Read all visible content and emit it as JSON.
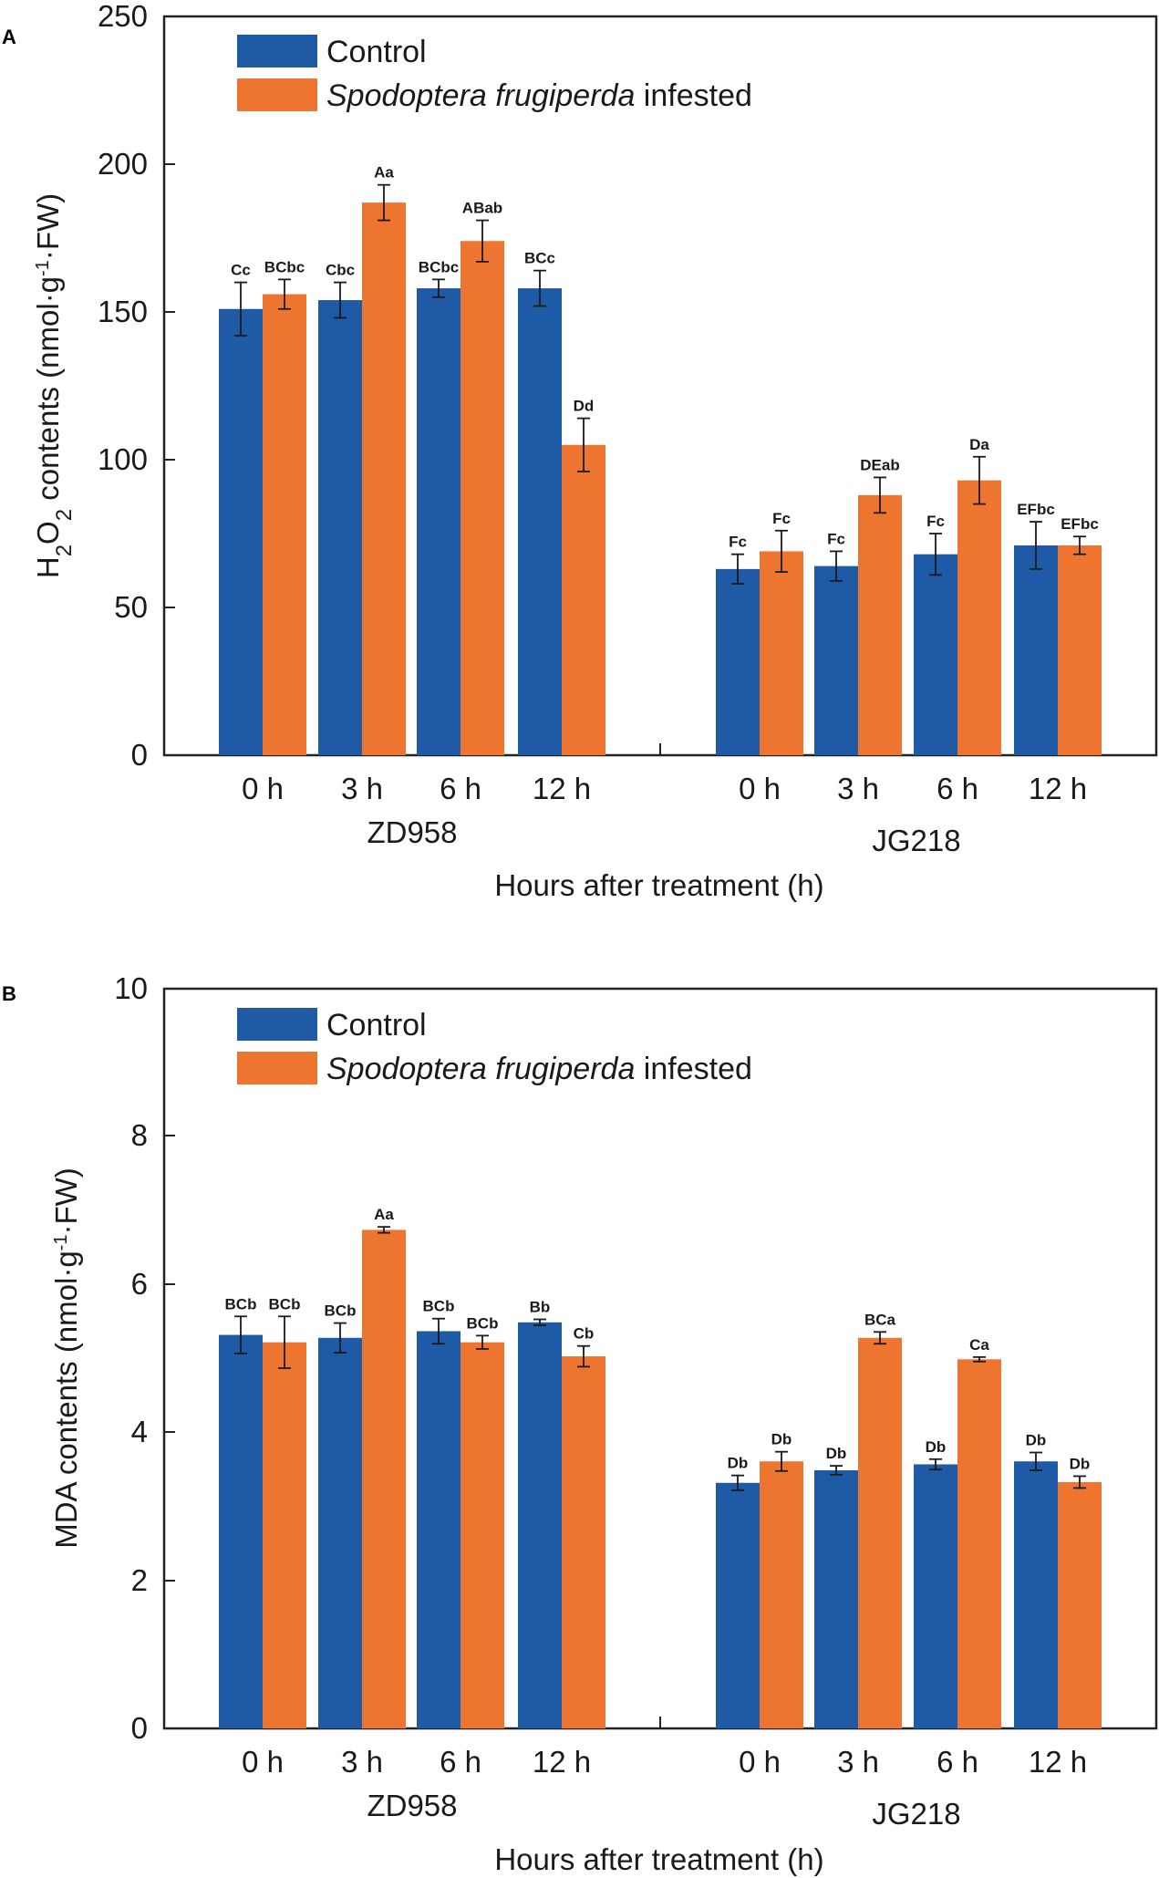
{
  "chart_data": [
    {
      "panel": "A",
      "type": "bar",
      "ylabel": "H2O2 contents (nmol·g-1·FW)",
      "ylabel_parts": {
        "a": "H",
        "b": "2",
        "c": "O",
        "d": "2",
        "e": " contents (nmol·g",
        "f": "-1",
        "g": "·FW)"
      },
      "xlabel": "Hours after treatment (h)",
      "ylim": [
        0,
        250
      ],
      "yticks": [
        "0",
        "50",
        "100",
        "150",
        "200",
        "250"
      ],
      "groups": [
        "ZD958",
        "JG218"
      ],
      "categories": [
        "0 h",
        "3 h",
        "6 h",
        "12 h",
        "0 h",
        "3 h",
        "6 h",
        "12 h"
      ],
      "legend": {
        "control": "Control",
        "infested_italic": "Spodoptera frugiperda",
        "infested_rest": " infested"
      },
      "series": [
        {
          "name": "Control",
          "color": "#1f5aa6",
          "values": [
            151,
            154,
            158,
            158,
            63,
            64,
            68,
            71
          ],
          "errors": [
            9,
            6,
            3,
            6,
            5,
            5,
            7,
            8
          ],
          "labels": [
            "Cc",
            "Cbc",
            "BCbc",
            "BCc",
            "Fc",
            "Fc",
            "Fc",
            "EFbc"
          ]
        },
        {
          "name": "Spodoptera frugiperda infested",
          "color": "#ee7530",
          "values": [
            156,
            187,
            174,
            105,
            69,
            88,
            93,
            71
          ],
          "errors": [
            5,
            6,
            7,
            9,
            7,
            6,
            8,
            3
          ],
          "labels": [
            "BCbc",
            "Aa",
            "ABab",
            "Dd",
            "Fc",
            "DEab",
            "Da",
            "EFbc"
          ]
        }
      ]
    },
    {
      "panel": "B",
      "type": "bar",
      "ylabel": "MDA contents (nmol·g-1·FW)",
      "ylabel_parts": {
        "a": "MDA contents (nmol·g",
        "f": "-1",
        "g": "·FW)"
      },
      "xlabel": "Hours after treatment (h)",
      "ylim": [
        0,
        10
      ],
      "yticks": [
        "0",
        "2",
        "4",
        "6",
        "8",
        "10"
      ],
      "groups": [
        "ZD958",
        "JG218"
      ],
      "categories": [
        "0 h",
        "3 h",
        "6 h",
        "12 h",
        "0 h",
        "3 h",
        "6 h",
        "12 h"
      ],
      "legend": {
        "control": "Control",
        "infested_italic": "Spodoptera frugiperda",
        "infested_rest": " infested"
      },
      "series": [
        {
          "name": "Control",
          "color": "#1f5aa6",
          "values": [
            5.32,
            5.28,
            5.37,
            5.49,
            3.32,
            3.49,
            3.57,
            3.61
          ],
          "errors": [
            0.25,
            0.2,
            0.17,
            0.04,
            0.1,
            0.06,
            0.07,
            0.12
          ],
          "labels": [
            "BCb",
            "BCb",
            "BCb",
            "Bb",
            "Db",
            "Db",
            "Db",
            "Db"
          ]
        },
        {
          "name": "Spodoptera frugiperda infested",
          "color": "#ee7530",
          "values": [
            5.22,
            6.74,
            5.22,
            5.03,
            3.61,
            5.28,
            4.99,
            3.33
          ],
          "errors": [
            0.35,
            0.04,
            0.09,
            0.14,
            0.13,
            0.08,
            0.03,
            0.08
          ],
          "labels": [
            "BCb",
            "Aa",
            "BCb",
            "Cb",
            "Db",
            "BCa",
            "Ca",
            "Db"
          ]
        }
      ]
    }
  ]
}
